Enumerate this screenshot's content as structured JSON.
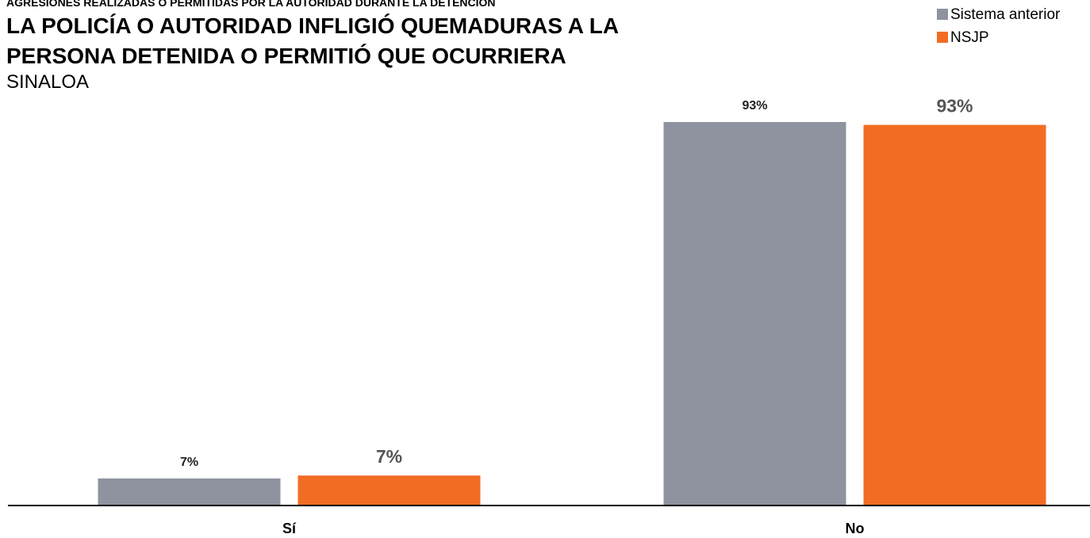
{
  "chart_data": {
    "type": "bar",
    "kicker": "AGRESIONES REALIZADAS O PERMITIDAS POR LA AUTORIDAD DURANTE LA DETENCIÓN",
    "title": "LA POLICÍA O AUTORIDAD INFLIGIÓ QUEMADURAS A LA PERSONA DETENIDA O PERMITIÓ QUE OCURRIERA",
    "subtitle": "SINALOA",
    "categories": [
      "Sí",
      "No"
    ],
    "series": [
      {
        "name": "Sistema anterior",
        "color": "#8e939f",
        "values": [
          6.6,
          93.4
        ],
        "value_labels": [
          "7%",
          "93%"
        ]
      },
      {
        "name": "NSJP",
        "color": "#f26c23",
        "values": [
          7.3,
          92.7
        ],
        "value_labels": [
          "7%",
          "93%"
        ]
      }
    ],
    "legend": "top-right"
  }
}
